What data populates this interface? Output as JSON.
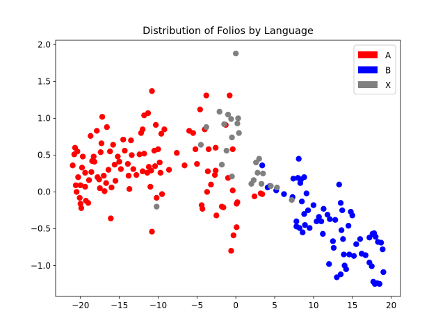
{
  "chart_data": {
    "type": "scatter",
    "title": "Distribution of Folios by Language",
    "xlabel": "",
    "ylabel": "",
    "xlim": [
      -23.2,
      21.2
    ],
    "ylim": [
      -1.42,
      2.06
    ],
    "x_ticks": [
      -20,
      -15,
      -10,
      -5,
      0,
      5,
      10,
      15,
      20
    ],
    "y_ticks": [
      -1.0,
      -0.5,
      0.0,
      0.5,
      1.0,
      1.5,
      2.0
    ],
    "x_tick_labels": [
      "−20",
      "−15",
      "−10",
      "−5",
      "0",
      "5",
      "10",
      "15",
      "20"
    ],
    "y_tick_labels": [
      "−1.0",
      "−0.5",
      "0.0",
      "0.5",
      "1.0",
      "1.5",
      "2.0"
    ],
    "grid": false,
    "legend_position": "top-right",
    "series": [
      {
        "name": "A",
        "color": "#ff0000",
        "points": [
          [
            -21.0,
            0.36
          ],
          [
            -20.7,
            0.6
          ],
          [
            -20.8,
            0.51
          ],
          [
            -20.4,
            0.55
          ],
          [
            -20.3,
            0.2
          ],
          [
            -20.5,
            0.0
          ],
          [
            -20.0,
            0.09
          ],
          [
            -20.1,
            -0.08
          ],
          [
            -20.0,
            -0.16
          ],
          [
            -19.9,
            -0.22
          ],
          [
            -20.6,
            0.09
          ],
          [
            -19.8,
            0.33
          ],
          [
            -19.7,
            0.48
          ],
          [
            -19.4,
            0.26
          ],
          [
            -19.4,
            0.07
          ],
          [
            -19.3,
            -0.12
          ],
          [
            -19.0,
            -0.15
          ],
          [
            -18.9,
            0.16
          ],
          [
            -18.7,
            0.76
          ],
          [
            -18.5,
            0.42
          ],
          [
            -18.6,
            0.27
          ],
          [
            -18.3,
            0.48
          ],
          [
            -18.2,
            0.41
          ],
          [
            -17.9,
            0.83
          ],
          [
            -17.6,
            0.17
          ],
          [
            -17.5,
            0.05
          ],
          [
            -17.8,
            0.2
          ],
          [
            -17.4,
            0.54
          ],
          [
            -17.3,
            0.66
          ],
          [
            -17.2,
            1.02
          ],
          [
            -17.0,
            0.22
          ],
          [
            -16.9,
            0.01
          ],
          [
            -16.7,
            0.12
          ],
          [
            -16.6,
            0.88
          ],
          [
            -16.4,
            0.3
          ],
          [
            -16.2,
            0.55
          ],
          [
            -16.1,
            -0.36
          ],
          [
            -16.0,
            0.06
          ],
          [
            -15.8,
            0.64
          ],
          [
            -15.6,
            0.37
          ],
          [
            -15.5,
            0.15
          ],
          [
            -15.2,
            0.48
          ],
          [
            -15.0,
            0.41
          ],
          [
            -14.8,
            0.31
          ],
          [
            -14.5,
            0.71
          ],
          [
            -14.3,
            0.56
          ],
          [
            -13.8,
            0.22
          ],
          [
            -13.9,
            0.38
          ],
          [
            -13.7,
            0.04
          ],
          [
            -13.5,
            0.7
          ],
          [
            -13.4,
            0.5
          ],
          [
            -13.2,
            0.31
          ],
          [
            -12.8,
            0.23
          ],
          [
            -12.4,
            0.51
          ],
          [
            -12.2,
            0.8
          ],
          [
            -12.0,
            0.85
          ],
          [
            -12.0,
            0.28
          ],
          [
            -11.8,
            1.04
          ],
          [
            -11.8,
            0.52
          ],
          [
            -11.4,
            0.26
          ],
          [
            -11.3,
            1.07
          ],
          [
            -11.2,
            0.34
          ],
          [
            -11.0,
            0.07
          ],
          [
            -10.9,
            0.29
          ],
          [
            -10.8,
            1.37
          ],
          [
            -10.8,
            -0.54
          ],
          [
            -10.5,
            0.56
          ],
          [
            -10.4,
            0.35
          ],
          [
            -10.3,
            0.91
          ],
          [
            -10.2,
            -0.08
          ],
          [
            -10.0,
            0.58
          ],
          [
            -9.8,
            0.4
          ],
          [
            -9.7,
            0.26
          ],
          [
            -9.6,
            0.79
          ],
          [
            -9.5,
            -0.03
          ],
          [
            -9.2,
            0.85
          ],
          [
            -8.6,
            0.3
          ],
          [
            -7.6,
            0.53
          ],
          [
            -6.6,
            0.36
          ],
          [
            -6.0,
            0.83
          ],
          [
            -5.5,
            0.8
          ],
          [
            -5.2,
            0.58
          ],
          [
            -5.0,
            0.38
          ],
          [
            -4.6,
            1.12
          ],
          [
            -4.4,
            -0.18
          ],
          [
            -4.3,
            -0.23
          ],
          [
            -4.0,
            0.85
          ],
          [
            -3.8,
            1.31
          ],
          [
            -3.7,
            0.0
          ],
          [
            -3.6,
            0.28
          ],
          [
            -3.5,
            0.58
          ],
          [
            -3.2,
            0.1
          ],
          [
            -2.7,
            0.23
          ],
          [
            -2.6,
            0.29
          ],
          [
            -2.6,
            0.6
          ],
          [
            -2.5,
            -0.32
          ],
          [
            -1.8,
            -0.2
          ],
          [
            -1.6,
            -0.21
          ],
          [
            -1.3,
            0.91
          ],
          [
            -1.0,
            0.19
          ],
          [
            -0.8,
            1.31
          ],
          [
            -0.6,
            -0.8
          ],
          [
            -0.4,
            0.58
          ],
          [
            -0.4,
            0.02
          ],
          [
            -0.3,
            -0.59
          ],
          [
            0.1,
            -0.16
          ],
          [
            0.1,
            -0.48
          ],
          [
            0.2,
            -0.14
          ],
          [
            2.4,
            -0.06
          ],
          [
            3.2,
            -0.02
          ],
          [
            3.4,
            -0.03
          ]
        ]
      },
      {
        "name": "B",
        "color": "#0000ff",
        "points": [
          [
            3.4,
            0.36
          ],
          [
            4.1,
            0.06
          ],
          [
            4.4,
            0.08
          ],
          [
            5.2,
            0.02
          ],
          [
            6.2,
            -0.03
          ],
          [
            7.3,
            -0.07
          ],
          [
            7.4,
            0.18
          ],
          [
            7.8,
            -0.4
          ],
          [
            7.8,
            -0.47
          ],
          [
            8.0,
            0.19
          ],
          [
            8.1,
            0.45
          ],
          [
            8.2,
            -0.49
          ],
          [
            8.3,
            0.12
          ],
          [
            8.4,
            0.17
          ],
          [
            8.5,
            -0.13
          ],
          [
            8.6,
            -0.55
          ],
          [
            8.8,
            -0.3
          ],
          [
            8.8,
            0.2
          ],
          [
            8.9,
            -0.45
          ],
          [
            9.1,
            -0.02
          ],
          [
            9.3,
            -0.25
          ],
          [
            9.5,
            -0.49
          ],
          [
            10.0,
            -0.18
          ],
          [
            10.4,
            -0.4
          ],
          [
            10.7,
            -0.34
          ],
          [
            11.0,
            -0.4
          ],
          [
            11.2,
            -0.57
          ],
          [
            11.3,
            -0.23
          ],
          [
            11.8,
            -0.31
          ],
          [
            12.0,
            -0.98
          ],
          [
            12.1,
            -0.37
          ],
          [
            12.5,
            -0.67
          ],
          [
            12.6,
            -0.76
          ],
          [
            12.8,
            -0.38
          ],
          [
            13.0,
            -1.16
          ],
          [
            13.3,
            0.1
          ],
          [
            13.5,
            -1.12
          ],
          [
            13.5,
            -0.15
          ],
          [
            13.6,
            -0.52
          ],
          [
            13.7,
            -0.25
          ],
          [
            13.8,
            -0.64
          ],
          [
            13.9,
            -0.85
          ],
          [
            14.0,
            -1.0
          ],
          [
            14.2,
            -1.05
          ],
          [
            14.5,
            -0.46
          ],
          [
            14.6,
            -0.85
          ],
          [
            14.8,
            -0.27
          ],
          [
            15.0,
            -0.32
          ],
          [
            15.2,
            -0.87
          ],
          [
            15.5,
            -0.71
          ],
          [
            16.0,
            -0.64
          ],
          [
            16.2,
            -0.84
          ],
          [
            16.7,
            -0.86
          ],
          [
            17.2,
            -0.62
          ],
          [
            17.2,
            -0.96
          ],
          [
            17.5,
            -1.01
          ],
          [
            17.6,
            -0.57
          ],
          [
            17.7,
            -1.22
          ],
          [
            17.8,
            -0.56
          ],
          [
            17.9,
            -1.25
          ],
          [
            18.0,
            -0.61
          ],
          [
            18.2,
            -1.24
          ],
          [
            18.3,
            -0.68
          ],
          [
            18.5,
            -1.25
          ],
          [
            18.7,
            -0.69
          ],
          [
            18.9,
            -0.78
          ],
          [
            19.0,
            -1.09
          ]
        ]
      },
      {
        "name": "X",
        "color": "#808080",
        "points": [
          [
            -10.2,
            -0.2
          ],
          [
            -4.5,
            0.64
          ],
          [
            -3.8,
            0.88
          ],
          [
            -2.1,
            1.09
          ],
          [
            -1.8,
            0.37
          ],
          [
            -1.5,
            0.92
          ],
          [
            -1.0,
            1.05
          ],
          [
            -1.2,
            0.56
          ],
          [
            -0.6,
            0.99
          ],
          [
            -0.5,
            0.74
          ],
          [
            0.0,
            1.88
          ],
          [
            0.2,
            0.93
          ],
          [
            0.3,
            1.0
          ],
          [
            0.4,
            0.8
          ],
          [
            -0.5,
            0.21
          ],
          [
            2.0,
            0.11
          ],
          [
            2.3,
            0.16
          ],
          [
            2.6,
            0.4
          ],
          [
            2.8,
            0.26
          ],
          [
            3.0,
            0.45
          ],
          [
            3.3,
            0.11
          ],
          [
            3.5,
            0.25
          ],
          [
            4.5,
            0.08
          ],
          [
            5.3,
            0.06
          ],
          [
            7.2,
            -0.11
          ]
        ]
      }
    ]
  }
}
